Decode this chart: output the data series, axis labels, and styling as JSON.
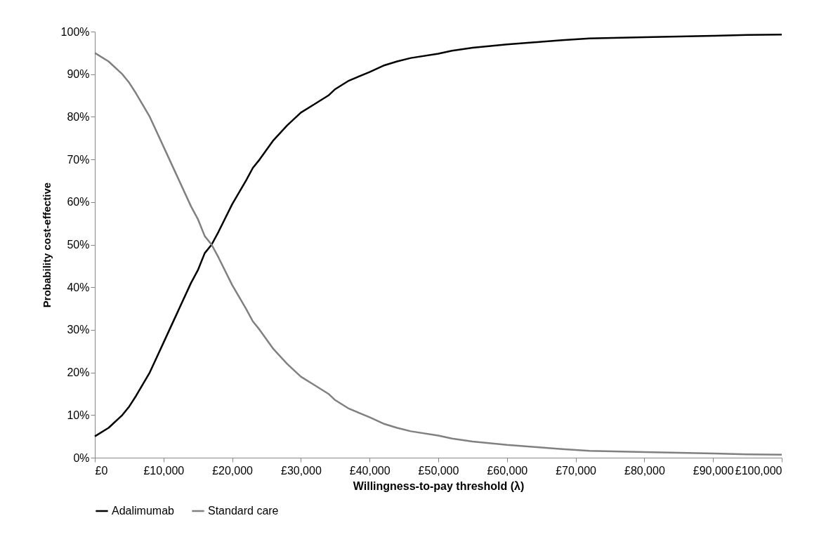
{
  "chart_data": {
    "type": "line",
    "xlabel": "Willingness-to-pay  threshold (λ)",
    "ylabel": "Probability  cost-effective",
    "x": [
      0,
      2000,
      4000,
      5000,
      6000,
      8000,
      10000,
      12000,
      14000,
      15000,
      16000,
      17000,
      18000,
      20000,
      22000,
      23000,
      24000,
      26000,
      28000,
      30000,
      32000,
      34000,
      35000,
      37000,
      40000,
      42000,
      44000,
      46000,
      50000,
      52000,
      55000,
      60000,
      65000,
      68000,
      72000,
      80000,
      90000,
      95000,
      100000
    ],
    "series": [
      {
        "name": "Adalimumab",
        "color": "#000000",
        "values": [
          5,
          7,
          10,
          12,
          14.5,
          20,
          27,
          34,
          41,
          44,
          48,
          50,
          53,
          59.5,
          65,
          68,
          70,
          74.5,
          78,
          81,
          83,
          85,
          86.5,
          88.5,
          90.5,
          92,
          93,
          93.8,
          94.8,
          95.5,
          96.2,
          97,
          97.6,
          98,
          98.4,
          98.7,
          99,
          99.2,
          99.3
        ]
      },
      {
        "name": "Standard care",
        "color": "#808080",
        "values": [
          95,
          93,
          90,
          88,
          85.5,
          80,
          73,
          66,
          59,
          56,
          52,
          50,
          47,
          40.5,
          35,
          32,
          30,
          25.5,
          22,
          19,
          17,
          15,
          13.5,
          11.5,
          9.5,
          8,
          7,
          6.2,
          5.2,
          4.5,
          3.8,
          3,
          2.4,
          2,
          1.6,
          1.3,
          1,
          0.8,
          0.7
        ]
      }
    ],
    "xlim": [
      0,
      100000
    ],
    "ylim": [
      0,
      100
    ],
    "xticks": [
      {
        "value": 0,
        "label": "£0"
      },
      {
        "value": 10000,
        "label": "£10,000"
      },
      {
        "value": 20000,
        "label": "£20,000"
      },
      {
        "value": 30000,
        "label": "£30,000"
      },
      {
        "value": 40000,
        "label": "£40,000"
      },
      {
        "value": 50000,
        "label": "£50,000"
      },
      {
        "value": 60000,
        "label": "£60,000"
      },
      {
        "value": 70000,
        "label": "£70,000"
      },
      {
        "value": 80000,
        "label": "£80,000"
      },
      {
        "value": 90000,
        "label": "£90,000"
      },
      {
        "value": 100000,
        "label": "£100,000"
      }
    ],
    "yticks": [
      {
        "value": 0,
        "label": "0%"
      },
      {
        "value": 10,
        "label": "10%"
      },
      {
        "value": 20,
        "label": "20%"
      },
      {
        "value": 30,
        "label": "30%"
      },
      {
        "value": 40,
        "label": "40%"
      },
      {
        "value": 50,
        "label": "50%"
      },
      {
        "value": 60,
        "label": "60%"
      },
      {
        "value": 70,
        "label": "70%"
      },
      {
        "value": 80,
        "label": "80%"
      },
      {
        "value": 90,
        "label": "90%"
      },
      {
        "value": 100,
        "label": "100%"
      }
    ],
    "legend": "bottom",
    "marker": "none",
    "line_style": "solid"
  }
}
